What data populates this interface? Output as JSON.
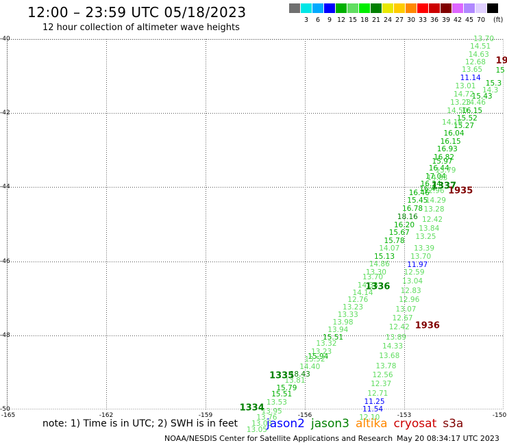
{
  "header": {
    "title": "12:00 – 23:59 UTC 05/18/2023",
    "subtitle": "12 hour collection of altimeter wave heights"
  },
  "legend": {
    "items": [
      {
        "color": "#707070",
        "label": ""
      },
      {
        "color": "#00e6e6",
        "label": "3"
      },
      {
        "color": "#00aaff",
        "label": "6"
      },
      {
        "color": "#0000ff",
        "label": "9"
      },
      {
        "color": "#00b000",
        "label": "12"
      },
      {
        "color": "#60dd60",
        "label": "15"
      },
      {
        "color": "#00ee00",
        "label": "18"
      },
      {
        "color": "#008000",
        "label": "21"
      },
      {
        "color": "#e8e800",
        "label": "24"
      },
      {
        "color": "#ffcc00",
        "label": "27"
      },
      {
        "color": "#ff8800",
        "label": "30"
      },
      {
        "color": "#ff0000",
        "label": "33"
      },
      {
        "color": "#cc0000",
        "label": "36"
      },
      {
        "color": "#800000",
        "label": "39"
      },
      {
        "color": "#dd66ff",
        "label": "42"
      },
      {
        "color": "#b088ff",
        "label": "45"
      },
      {
        "color": "#e0d0ff",
        "label": "70"
      },
      {
        "color": "#000000",
        "label": ""
      }
    ],
    "unit": "(ft)"
  },
  "map": {
    "lat_ticks": [
      "-40",
      "-42",
      "-44",
      "-46",
      "-48",
      "-50"
    ],
    "lon_ticks": [
      "-165",
      "-162",
      "-159",
      "-156",
      "-153",
      "-150"
    ],
    "lat_range": [
      -50,
      -40
    ],
    "lon_range": [
      -165,
      -150
    ]
  },
  "footer": {
    "note": "note: 1) Time is in UTC; 2) SWH is in feet",
    "satellites": [
      {
        "name": "jason2",
        "color": "#0000ff"
      },
      {
        "name": "jason3",
        "color": "#008000"
      },
      {
        "name": "altika",
        "color": "#ff8800"
      },
      {
        "name": "cryosat",
        "color": "#cc0000"
      },
      {
        "name": "s3a",
        "color": "#800000"
      }
    ],
    "credit": "NOAA/NESDIS Center for Satellite Applications and Research",
    "timestamp": "May 20 08:34:17 UTC 2023"
  },
  "tracks": {
    "pass_labels": [
      {
        "text": "1334",
        "color": "#008000",
        "lon": -157.6,
        "lat": -49.97
      },
      {
        "text": "1335",
        "color": "#008000",
        "lon": -156.7,
        "lat": -49.1
      },
      {
        "text": "1336",
        "color": "#008000",
        "lon": -153.8,
        "lat": -46.7
      },
      {
        "text": "1337",
        "color": "#008000",
        "lon": -151.8,
        "lat": -43.97
      },
      {
        "text": "1935",
        "color": "#800000",
        "lon": -151.3,
        "lat": -44.1
      },
      {
        "text": "1936",
        "color": "#800000",
        "lon": -152.3,
        "lat": -47.75
      },
      {
        "text": "19",
        "color": "#800000",
        "lon": -150.05,
        "lat": -40.6
      }
    ],
    "points": [
      {
        "v": "13.70",
        "c": "#60dd60",
        "lon": -150.6,
        "lat": -40.0
      },
      {
        "v": "14.51",
        "c": "#60dd60",
        "lon": -150.7,
        "lat": -40.2
      },
      {
        "v": "14.63",
        "c": "#60dd60",
        "lon": -150.75,
        "lat": -40.42
      },
      {
        "v": "12.68",
        "c": "#60dd60",
        "lon": -150.85,
        "lat": -40.62
      },
      {
        "v": "13.65",
        "c": "#60dd60",
        "lon": -150.95,
        "lat": -40.84
      },
      {
        "v": "11.14",
        "c": "#0000ff",
        "lon": -151.0,
        "lat": -41.05
      },
      {
        "v": "13.01",
        "c": "#60dd60",
        "lon": -151.15,
        "lat": -41.28
      },
      {
        "v": "14.72",
        "c": "#60dd60",
        "lon": -151.2,
        "lat": -41.5
      },
      {
        "v": "13.23",
        "c": "#60dd60",
        "lon": -151.3,
        "lat": -41.72
      },
      {
        "v": "14.46",
        "c": "#60dd60",
        "lon": -150.85,
        "lat": -41.72
      },
      {
        "v": "14.50",
        "c": "#60dd60",
        "lon": -151.4,
        "lat": -41.95
      },
      {
        "v": "15.43",
        "c": "#00b000",
        "lon": -150.65,
        "lat": -41.55
      },
      {
        "v": "15.3",
        "c": "#00b000",
        "lon": -150.3,
        "lat": -41.2
      },
      {
        "v": "14.3",
        "c": "#60dd60",
        "lon": -150.4,
        "lat": -41.38
      },
      {
        "v": "15",
        "c": "#00b000",
        "lon": -150.1,
        "lat": -40.85
      },
      {
        "v": "16.15",
        "c": "#00b000",
        "lon": -150.95,
        "lat": -41.95
      },
      {
        "v": "15.52",
        "c": "#00b000",
        "lon": -151.1,
        "lat": -42.15
      },
      {
        "v": "15.27",
        "c": "#00b000",
        "lon": -151.2,
        "lat": -42.35
      },
      {
        "v": "14.16",
        "c": "#60dd60",
        "lon": -151.55,
        "lat": -42.25
      },
      {
        "v": "16.04",
        "c": "#00b000",
        "lon": -151.5,
        "lat": -42.55
      },
      {
        "v": "16.15",
        "c": "#00b000",
        "lon": -151.6,
        "lat": -42.77
      },
      {
        "v": "16.93",
        "c": "#00b000",
        "lon": -151.7,
        "lat": -42.98
      },
      {
        "v": "16.82",
        "c": "#00b000",
        "lon": -151.8,
        "lat": -43.2
      },
      {
        "v": "15.97",
        "c": "#00b000",
        "lon": -151.85,
        "lat": -43.3
      },
      {
        "v": "16.44",
        "c": "#00b000",
        "lon": -151.95,
        "lat": -43.5
      },
      {
        "v": "17.04",
        "c": "#00b000",
        "lon": -152.05,
        "lat": -43.72
      },
      {
        "v": "13.79",
        "c": "#60dd60",
        "lon": -151.75,
        "lat": -43.55
      },
      {
        "v": "16.24",
        "c": "#00b000",
        "lon": -152.2,
        "lat": -43.92
      },
      {
        "v": "14.83",
        "c": "#60dd60",
        "lon": -152.0,
        "lat": -43.75
      },
      {
        "v": "16.4",
        "c": "#00b000",
        "lon": -152.3,
        "lat": -44.05
      },
      {
        "v": "12.96",
        "c": "#60dd60",
        "lon": -152.1,
        "lat": -44.1
      },
      {
        "v": "16.46",
        "c": "#00b000",
        "lon": -152.55,
        "lat": -44.15
      },
      {
        "v": "15.45",
        "c": "#00b000",
        "lon": -152.6,
        "lat": -44.37
      },
      {
        "v": "14.29",
        "c": "#60dd60",
        "lon": -152.05,
        "lat": -44.37
      },
      {
        "v": "16.78",
        "c": "#00b000",
        "lon": -152.75,
        "lat": -44.58
      },
      {
        "v": "13.28",
        "c": "#60dd60",
        "lon": -152.1,
        "lat": -44.6
      },
      {
        "v": "18.16",
        "c": "#008000",
        "lon": -152.9,
        "lat": -44.8
      },
      {
        "v": "16.20",
        "c": "#00b000",
        "lon": -153.0,
        "lat": -45.02
      },
      {
        "v": "12.42",
        "c": "#60dd60",
        "lon": -152.15,
        "lat": -44.88
      },
      {
        "v": "15.67",
        "c": "#00b000",
        "lon": -153.15,
        "lat": -45.23
      },
      {
        "v": "13.84",
        "c": "#60dd60",
        "lon": -152.25,
        "lat": -45.12
      },
      {
        "v": "15.78",
        "c": "#00b000",
        "lon": -153.3,
        "lat": -45.45
      },
      {
        "v": "13.25",
        "c": "#60dd60",
        "lon": -152.35,
        "lat": -45.35
      },
      {
        "v": "14.07",
        "c": "#60dd60",
        "lon": -153.45,
        "lat": -45.65
      },
      {
        "v": "13.39",
        "c": "#60dd60",
        "lon": -152.4,
        "lat": -45.65
      },
      {
        "v": "15.13",
        "c": "#00b000",
        "lon": -153.6,
        "lat": -45.88
      },
      {
        "v": "13.70",
        "c": "#60dd60",
        "lon": -152.5,
        "lat": -45.88
      },
      {
        "v": "14.86",
        "c": "#60dd60",
        "lon": -153.75,
        "lat": -46.08
      },
      {
        "v": "11.97",
        "c": "#0000ff",
        "lon": -152.6,
        "lat": -46.1
      },
      {
        "v": "13.30",
        "c": "#60dd60",
        "lon": -153.85,
        "lat": -46.3
      },
      {
        "v": "12.59",
        "c": "#60dd60",
        "lon": -152.7,
        "lat": -46.3
      },
      {
        "v": "13.70",
        "c": "#60dd60",
        "lon": -153.95,
        "lat": -46.43
      },
      {
        "v": "14.38",
        "c": "#60dd60",
        "lon": -154.1,
        "lat": -46.65
      },
      {
        "v": "13.04",
        "c": "#60dd60",
        "lon": -152.75,
        "lat": -46.55
      },
      {
        "v": "14.14",
        "c": "#60dd60",
        "lon": -154.25,
        "lat": -46.85
      },
      {
        "v": "12.83",
        "c": "#60dd60",
        "lon": -152.8,
        "lat": -46.8
      },
      {
        "v": "12.76",
        "c": "#60dd60",
        "lon": -154.4,
        "lat": -47.05
      },
      {
        "v": "13.23",
        "c": "#60dd60",
        "lon": -154.55,
        "lat": -47.25
      },
      {
        "v": "12.96",
        "c": "#60dd60",
        "lon": -152.85,
        "lat": -47.05
      },
      {
        "v": "13.33",
        "c": "#60dd60",
        "lon": -154.7,
        "lat": -47.45
      },
      {
        "v": "13.07",
        "c": "#60dd60",
        "lon": -152.95,
        "lat": -47.3
      },
      {
        "v": "13.98",
        "c": "#60dd60",
        "lon": -154.85,
        "lat": -47.65
      },
      {
        "v": "12.67",
        "c": "#60dd60",
        "lon": -153.05,
        "lat": -47.55
      },
      {
        "v": "13.94",
        "c": "#60dd60",
        "lon": -155.0,
        "lat": -47.85
      },
      {
        "v": "12.42",
        "c": "#60dd60",
        "lon": -153.15,
        "lat": -47.78
      },
      {
        "v": "15.51",
        "c": "#00b000",
        "lon": -155.15,
        "lat": -48.05
      },
      {
        "v": "13.32",
        "c": "#60dd60",
        "lon": -155.35,
        "lat": -48.22
      },
      {
        "v": "13.89",
        "c": "#60dd60",
        "lon": -153.25,
        "lat": -48.05
      },
      {
        "v": "13.23",
        "c": "#60dd60",
        "lon": -155.5,
        "lat": -48.45
      },
      {
        "v": "14.33",
        "c": "#60dd60",
        "lon": -153.35,
        "lat": -48.3
      },
      {
        "v": "15.94",
        "c": "#00b000",
        "lon": -155.6,
        "lat": -48.58
      },
      {
        "v": "13.52",
        "c": "#60dd60",
        "lon": -155.7,
        "lat": -48.65
      },
      {
        "v": "13.68",
        "c": "#60dd60",
        "lon": -153.45,
        "lat": -48.55
      },
      {
        "v": "14.40",
        "c": "#60dd60",
        "lon": -155.85,
        "lat": -48.85
      },
      {
        "v": "13.78",
        "c": "#60dd60",
        "lon": -153.55,
        "lat": -48.83
      },
      {
        "v": "18.43",
        "c": "#008000",
        "lon": -156.15,
        "lat": -49.05
      },
      {
        "v": "12.56",
        "c": "#60dd60",
        "lon": -153.65,
        "lat": -49.08
      },
      {
        "v": "13.81",
        "c": "#60dd60",
        "lon": -156.3,
        "lat": -49.23
      },
      {
        "v": "12.37",
        "c": "#60dd60",
        "lon": -153.7,
        "lat": -49.32
      },
      {
        "v": "15.79",
        "c": "#00b000",
        "lon": -156.55,
        "lat": -49.42
      },
      {
        "v": "15.51",
        "c": "#00b000",
        "lon": -156.7,
        "lat": -49.6
      },
      {
        "v": "12.71",
        "c": "#60dd60",
        "lon": -153.8,
        "lat": -49.58
      },
      {
        "v": "13.53",
        "c": "#60dd60",
        "lon": -156.85,
        "lat": -49.82
      },
      {
        "v": "11.25",
        "c": "#0000ff",
        "lon": -153.9,
        "lat": -49.8
      },
      {
        "v": "13.95",
        "c": "#60dd60",
        "lon": -157.0,
        "lat": -50.05
      },
      {
        "v": "13.76",
        "c": "#60dd60",
        "lon": -157.15,
        "lat": -50.22
      },
      {
        "v": "11.54",
        "c": "#0000ff",
        "lon": -153.95,
        "lat": -50.0
      },
      {
        "v": "13.03",
        "c": "#60dd60",
        "lon": -157.3,
        "lat": -50.38
      },
      {
        "v": "12.10",
        "c": "#60dd60",
        "lon": -154.05,
        "lat": -50.22
      },
      {
        "v": "13.05",
        "c": "#60dd60",
        "lon": -157.45,
        "lat": -50.55
      }
    ]
  }
}
